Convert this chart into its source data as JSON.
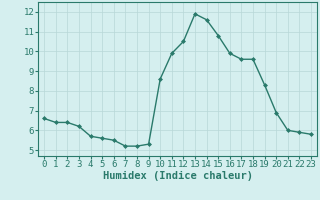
{
  "x": [
    0,
    1,
    2,
    3,
    4,
    5,
    6,
    7,
    8,
    9,
    10,
    11,
    12,
    13,
    14,
    15,
    16,
    17,
    18,
    19,
    20,
    21,
    22,
    23
  ],
  "y": [
    6.6,
    6.4,
    6.4,
    6.2,
    5.7,
    5.6,
    5.5,
    5.2,
    5.2,
    5.3,
    8.6,
    9.9,
    10.5,
    11.9,
    11.6,
    10.8,
    9.9,
    9.6,
    9.6,
    8.3,
    6.9,
    6.0,
    5.9,
    5.8
  ],
  "line_color": "#2a7a6b",
  "marker": "D",
  "marker_size": 2.0,
  "bg_color": "#d5efef",
  "grid_color": "#b8d8d8",
  "xlabel": "Humidex (Indice chaleur)",
  "xlabel_fontsize": 7.5,
  "tick_fontsize": 6.5,
  "xlim": [
    -0.5,
    23.5
  ],
  "ylim": [
    4.7,
    12.5
  ],
  "yticks": [
    5,
    6,
    7,
    8,
    9,
    10,
    11,
    12
  ],
  "xticks": [
    0,
    1,
    2,
    3,
    4,
    5,
    6,
    7,
    8,
    9,
    10,
    11,
    12,
    13,
    14,
    15,
    16,
    17,
    18,
    19,
    20,
    21,
    22,
    23
  ],
  "spine_color": "#2a7a6b",
  "linewidth": 1.0
}
